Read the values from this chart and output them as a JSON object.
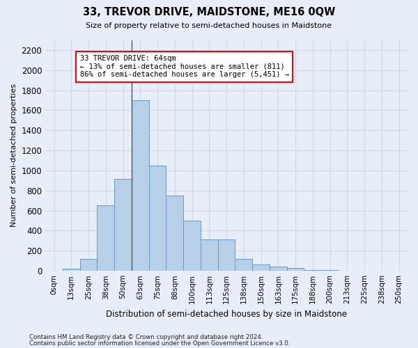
{
  "title": "33, TREVOR DRIVE, MAIDSTONE, ME16 0QW",
  "subtitle": "Size of property relative to semi-detached houses in Maidstone",
  "xlabel": "Distribution of semi-detached houses by size in Maidstone",
  "ylabel": "Number of semi-detached properties",
  "footnote1": "Contains HM Land Registry data © Crown copyright and database right 2024.",
  "footnote2": "Contains public sector information licensed under the Open Government Licence v3.0.",
  "bar_labels": [
    "0sqm",
    "13sqm",
    "25sqm",
    "38sqm",
    "50sqm",
    "63sqm",
    "75sqm",
    "88sqm",
    "100sqm",
    "113sqm",
    "125sqm",
    "138sqm",
    "150sqm",
    "163sqm",
    "175sqm",
    "188sqm",
    "200sqm",
    "213sqm",
    "225sqm",
    "238sqm",
    "250sqm"
  ],
  "bar_values": [
    0,
    20,
    120,
    650,
    920,
    1700,
    1050,
    750,
    500,
    310,
    310,
    120,
    65,
    45,
    30,
    10,
    5,
    2,
    1,
    0,
    0
  ],
  "bar_color": "#b8cfe8",
  "bar_edge_color": "#6699cc",
  "annotation_text": "33 TREVOR DRIVE: 64sqm\n← 13% of semi-detached houses are smaller (811)\n86% of semi-detached houses are larger (5,451) →",
  "annotation_box_color": "white",
  "annotation_box_edge_color": "red",
  "property_bin_index": 5,
  "ylim": [
    0,
    2300
  ],
  "yticks": [
    0,
    200,
    400,
    600,
    800,
    1000,
    1200,
    1400,
    1600,
    1800,
    2000,
    2200
  ],
  "grid_color": "#cdd8ea",
  "bg_color": "#e8eef7"
}
